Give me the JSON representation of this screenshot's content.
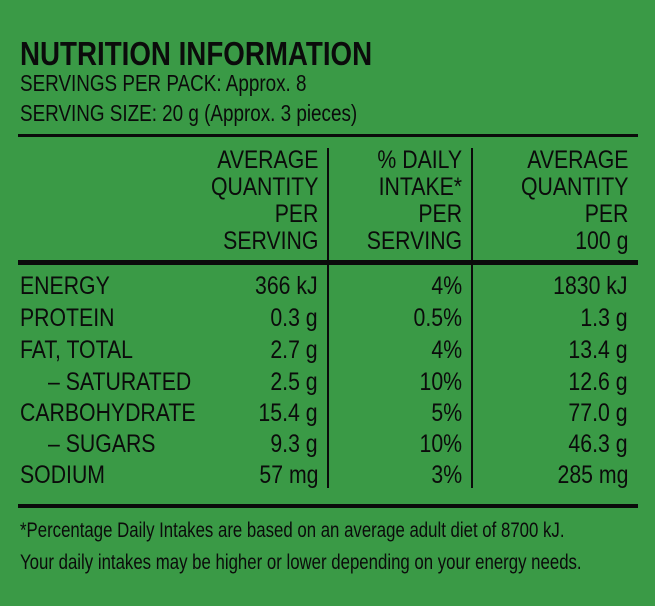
{
  "panel": {
    "title": "NUTRITION INFORMATION",
    "servings_per_pack": "SERVINGS PER PACK: Approx. 8",
    "serving_size": "SERVING SIZE: 20 g (Approx. 3 pieces)"
  },
  "columns": [
    {
      "lines": [
        "AVERAGE",
        "QUANTITY",
        "PER",
        "SERVING"
      ]
    },
    {
      "lines": [
        "% DAILY",
        "INTAKE*",
        "PER",
        "SERVING"
      ]
    },
    {
      "lines": [
        "AVERAGE",
        "QUANTITY",
        "PER",
        "100 g"
      ]
    }
  ],
  "rows": [
    {
      "label": "ENERGY",
      "per_serving": "366 kJ",
      "daily_intake": "4%",
      "per_100g": "1830 kJ"
    },
    {
      "label": "PROTEIN",
      "per_serving": "0.3 g",
      "daily_intake": "0.5%",
      "per_100g": "1.3 g"
    },
    {
      "label": "FAT, TOTAL",
      "per_serving": "2.7 g",
      "daily_intake": "4%",
      "per_100g": "13.4 g"
    },
    {
      "label": "– SATURATED",
      "per_serving": "2.5 g",
      "daily_intake": "10%",
      "per_100g": "12.6 g"
    },
    {
      "label": "CARBOHYDRATE",
      "per_serving": "15.4 g",
      "daily_intake": "5%",
      "per_100g": "77.0 g"
    },
    {
      "label": "– SUGARS",
      "per_serving": "9.3 g",
      "daily_intake": "10%",
      "per_100g": "46.3 g"
    },
    {
      "label": "SODIUM",
      "per_serving": "57 mg",
      "daily_intake": "3%",
      "per_100g": "285 mg"
    }
  ],
  "footnote": {
    "line1": "*Percentage Daily Intakes are based on an average adult diet of 8700  kJ.",
    "line2": "Your daily intakes may be higher or lower depending on your energy needs."
  },
  "colors": {
    "background": "#3a9a46",
    "ink": "#0b0b0b"
  }
}
